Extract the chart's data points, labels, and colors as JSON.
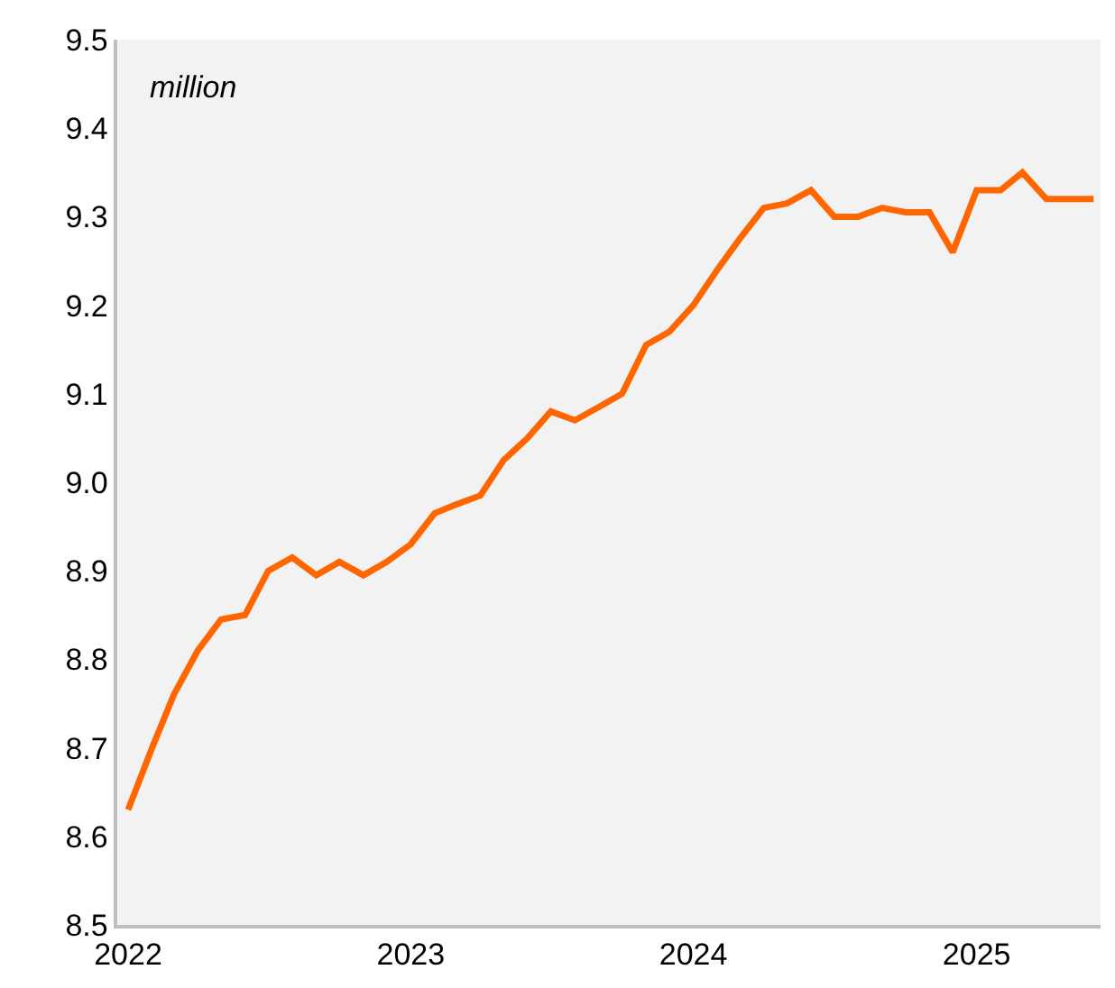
{
  "chart_data": {
    "type": "line",
    "annotations": [
      "million"
    ],
    "x": [
      "2022-01",
      "2022-02",
      "2022-03",
      "2022-04",
      "2022-05",
      "2022-06",
      "2022-07",
      "2022-08",
      "2022-09",
      "2022-10",
      "2022-11",
      "2022-12",
      "2023-01",
      "2023-02",
      "2023-03",
      "2023-04",
      "2023-05",
      "2023-06",
      "2023-07",
      "2023-08",
      "2023-09",
      "2023-10",
      "2023-11",
      "2023-12",
      "2024-01",
      "2024-02",
      "2024-03",
      "2024-04",
      "2024-05",
      "2024-06",
      "2024-07",
      "2024-08",
      "2024-09",
      "2024-10",
      "2024-11",
      "2024-12",
      "2025-01",
      "2025-02",
      "2025-03",
      "2025-04",
      "2025-05",
      "2025-06"
    ],
    "series": [
      {
        "color": "#ff6600",
        "values": [
          8.63,
          8.7,
          8.76,
          8.81,
          8.845,
          8.85,
          8.9,
          8.915,
          8.895,
          8.91,
          8.895,
          8.91,
          8.93,
          8.965,
          8.975,
          8.985,
          9.025,
          9.05,
          9.08,
          9.07,
          9.085,
          9.1,
          9.155,
          9.17,
          9.2,
          9.24,
          9.275,
          9.31,
          9.315,
          9.33,
          9.3,
          9.3,
          9.31,
          9.305,
          9.305,
          9.26,
          9.33,
          9.33,
          9.35,
          9.32,
          9.32,
          9.32
        ]
      }
    ],
    "xlim": [
      "2021-12-18",
      "2025-06-10"
    ],
    "xticks": [
      "2022",
      "2023",
      "2024",
      "2025"
    ],
    "ylim": [
      8.5,
      9.5
    ],
    "yticks": [
      8.5,
      8.6,
      8.7,
      8.8,
      8.9,
      {
        "value": 9,
        "label": "9.0"
      },
      9.1,
      9.2,
      9.3,
      9.4,
      9.5
    ],
    "grid": false,
    "marker": "none",
    "line_style": "solid"
  }
}
